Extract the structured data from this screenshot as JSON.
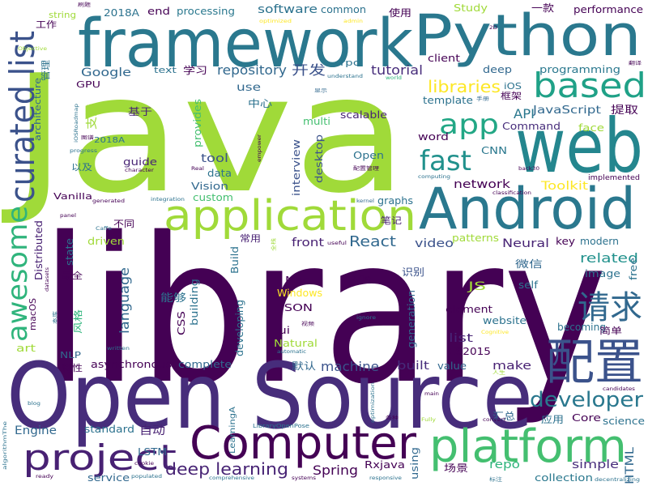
{
  "words": [
    {
      "text": "library",
      "color": "#440154"
    },
    {
      "text": "Java",
      "color": "#a0da39"
    },
    {
      "text": "Open Source",
      "color": "#472d7b"
    },
    {
      "text": "framework",
      "color": "#2a788e"
    },
    {
      "text": "Python",
      "color": "#2a788e"
    },
    {
      "text": "web",
      "color": "#24868e"
    },
    {
      "text": "Android",
      "color": "#2a788e"
    },
    {
      "text": "application",
      "color": "#a0da39"
    },
    {
      "text": "Computer",
      "color": "#440154"
    },
    {
      "text": "platform",
      "color": "#44bf70"
    },
    {
      "text": "配置",
      "color": "#3b528b"
    },
    {
      "text": "project",
      "color": "#482173"
    },
    {
      "text": "based",
      "color": "#1fa187"
    },
    {
      "text": "curated list",
      "color": "#3b528b"
    },
    {
      "text": "awesome",
      "color": "#2fb47c"
    },
    {
      "text": "app",
      "color": "#22a785"
    },
    {
      "text": "fast",
      "color": "#21918c"
    },
    {
      "text": "developer",
      "color": "#2a788e"
    },
    {
      "text": "请求",
      "color": "#31688e"
    },
    {
      "text": "deep learning",
      "color": "#482475"
    },
    {
      "text": "React",
      "color": "#31688e"
    },
    {
      "text": "Spring",
      "color": "#440154"
    },
    {
      "text": "libraries",
      "color": "#fde725"
    },
    {
      "text": "repository",
      "color": "#31688e"
    },
    {
      "text": "tutorial",
      "color": "#472d7b"
    },
    {
      "text": "machine",
      "color": "#3b528b"
    },
    {
      "text": "software",
      "color": "#2c728e"
    },
    {
      "text": "开发",
      "color": "#3b528b"
    },
    {
      "text": "Google",
      "color": "#31688e"
    },
    {
      "text": "language",
      "color": "#31688e"
    },
    {
      "text": "related",
      "color": "#21918c"
    },
    {
      "text": "Neural",
      "color": "#482475"
    },
    {
      "text": "video",
      "color": "#3b528b"
    },
    {
      "text": "built",
      "color": "#472d7b"
    },
    {
      "text": "make",
      "color": "#482173"
    },
    {
      "text": "list",
      "color": "#482475"
    },
    {
      "text": "repo",
      "color": "#2fb47c"
    },
    {
      "text": "simple",
      "color": "#472d7b"
    },
    {
      "text": "Rxjava",
      "color": "#440154"
    },
    {
      "text": "HTML",
      "color": "#31688e"
    },
    {
      "text": "JS",
      "color": "#a0da39"
    },
    {
      "text": "Engine",
      "color": "#31688e"
    },
    {
      "text": "collection",
      "color": "#2a788e"
    },
    {
      "text": "using",
      "color": "#31688e"
    },
    {
      "text": "LSTM",
      "color": "#31688e"
    },
    {
      "text": "service",
      "color": "#31688e"
    },
    {
      "text": "自动",
      "color": "#482173"
    },
    {
      "text": "front",
      "color": "#482173"
    },
    {
      "text": "network",
      "color": "#440154"
    },
    {
      "text": "Toolkit",
      "color": "#fde725"
    },
    {
      "text": "Vision",
      "color": "#31688e"
    },
    {
      "text": "Open",
      "color": "#2c728e"
    },
    {
      "text": "desktop",
      "color": "#3b528b"
    },
    {
      "text": "interview",
      "color": "#3b528b"
    },
    {
      "text": "Command",
      "color": "#472d7b"
    },
    {
      "text": "JavaScript",
      "color": "#31688e"
    },
    {
      "text": "API",
      "color": "#2a788e"
    },
    {
      "text": "提取",
      "color": "#440154"
    },
    {
      "text": "face",
      "color": "#a0da39"
    },
    {
      "text": "word",
      "color": "#440154"
    },
    {
      "text": "CNN",
      "color": "#2a788e"
    },
    {
      "text": "guide",
      "color": "#482475"
    },
    {
      "text": "tool",
      "color": "#3b528b"
    },
    {
      "text": "provides",
      "color": "#44bf70"
    },
    {
      "text": "scalable",
      "color": "#482475"
    },
    {
      "text": "multi",
      "color": "#44bf70"
    },
    {
      "text": "use",
      "color": "#31688e"
    },
    {
      "text": "支持",
      "color": "#a0da39"
    },
    {
      "text": "基于",
      "color": "#482475"
    },
    {
      "text": "中心",
      "color": "#2c728e"
    },
    {
      "text": "GPU",
      "color": "#440154"
    },
    {
      "text": "text",
      "color": "#2c728e"
    },
    {
      "text": "学习",
      "color": "#440154"
    },
    {
      "text": "rpc",
      "color": "#2c728e"
    },
    {
      "text": "client",
      "color": "#440154"
    },
    {
      "text": "deep",
      "color": "#31688e"
    },
    {
      "text": "programming",
      "color": "#2a788e"
    },
    {
      "text": "iOS",
      "color": "#2c728e"
    },
    {
      "text": "框架",
      "color": "#440154"
    },
    {
      "text": "template",
      "color": "#2c728e"
    },
    {
      "text": "performance",
      "color": "#440154"
    },
    {
      "text": "Study",
      "color": "#a0da39"
    },
    {
      "text": "processing",
      "color": "#2a788e"
    },
    {
      "text": "common",
      "color": "#2c728e"
    },
    {
      "text": "使用",
      "color": "#440154"
    },
    {
      "text": "一款",
      "color": "#440154"
    },
    {
      "text": "2018A",
      "color": "#2c728e"
    },
    {
      "text": "end",
      "color": "#440154"
    },
    {
      "text": "string",
      "color": "#a0da39"
    },
    {
      "text": "工作",
      "color": "#440154"
    },
    {
      "text": "architecture",
      "color": "#31688e"
    },
    {
      "text": "管理",
      "color": "#2c728e"
    },
    {
      "text": "以及",
      "color": "#2c728e"
    },
    {
      "text": "Vanilla",
      "color": "#440154"
    },
    {
      "text": "custom",
      "color": "#44bf70"
    },
    {
      "text": "data",
      "color": "#2c728e"
    },
    {
      "text": "graphs",
      "color": "#2c728e"
    },
    {
      "text": "笔记",
      "color": "#482173"
    },
    {
      "text": "常用",
      "color": "#482173"
    },
    {
      "text": "不同",
      "color": "#440154"
    },
    {
      "text": "driven",
      "color": "#a0da39"
    },
    {
      "text": "state",
      "color": "#2c728e"
    },
    {
      "text": "Distributed",
      "color": "#482173"
    },
    {
      "text": "最全",
      "color": "#440154"
    },
    {
      "text": "Build",
      "color": "#2c728e"
    },
    {
      "text": "building",
      "color": "#2c728e"
    },
    {
      "text": "能够",
      "color": "#2c728e"
    },
    {
      "text": "Mac",
      "color": "#440154"
    },
    {
      "text": "Windows",
      "color": "#fde725"
    },
    {
      "text": "JSON",
      "color": "#440154"
    },
    {
      "text": "ui",
      "color": "#440154"
    },
    {
      "text": "Natural",
      "color": "#a0da39"
    },
    {
      "text": "CSS",
      "color": "#440154"
    },
    {
      "text": "developing",
      "color": "#2c728e"
    },
    {
      "text": "asynchronous",
      "color": "#440154"
    },
    {
      "text": "complete",
      "color": "#31688e"
    },
    {
      "text": "特性",
      "color": "#440154"
    },
    {
      "text": "NLP",
      "color": "#31688e"
    },
    {
      "text": "art",
      "color": "#a0da39"
    },
    {
      "text": "macOS",
      "color": "#440154"
    },
    {
      "text": "风格",
      "color": "#2fb47c"
    },
    {
      "text": "ES2015",
      "color": "#440154"
    },
    {
      "text": "默认",
      "color": "#31688e"
    },
    {
      "text": "value",
      "color": "#31688e"
    },
    {
      "text": "element",
      "color": "#440154"
    },
    {
      "text": "website",
      "color": "#2c728e"
    },
    {
      "text": "generation",
      "color": "#31688e"
    },
    {
      "text": "becoming",
      "color": "#2c728e"
    },
    {
      "text": "简单",
      "color": "#440154"
    },
    {
      "text": "image",
      "color": "#2c728e"
    },
    {
      "text": "self",
      "color": "#2c728e"
    },
    {
      "text": "微信",
      "color": "#31688e"
    },
    {
      "text": "识别",
      "color": "#3b528b"
    },
    {
      "text": "patterns",
      "color": "#a0da39"
    },
    {
      "text": "key",
      "color": "#440154"
    },
    {
      "text": "modern",
      "color": "#2c728e"
    },
    {
      "text": "free",
      "color": "#2c728e"
    },
    {
      "text": "implemented",
      "color": "#440154"
    },
    {
      "text": "汇总",
      "color": "#31688e"
    },
    {
      "text": "应用",
      "color": "#2c728e"
    },
    {
      "text": "Core",
      "color": "#440154"
    },
    {
      "text": "science",
      "color": "#2c728e"
    },
    {
      "text": "场景",
      "color": "#440154"
    },
    {
      "text": "standard",
      "color": "#2c728e"
    },
    {
      "text": "LearningA",
      "color": "#2c728e"
    },
    {
      "text": "2018A",
      "color": "#2c728e"
    },
    {
      "text": "optimized",
      "color": "#fde725"
    },
    {
      "text": "admin",
      "color": "#fde725"
    },
    {
      "text": "Objective",
      "color": "#a0da39"
    },
    {
      "text": "understand",
      "color": "#2c728e"
    },
    {
      "text": "world",
      "color": "#2fb47c"
    },
    {
      "text": "显示",
      "color": "#31688e"
    },
    {
      "text": "手册",
      "color": "#31688e"
    },
    {
      "text": "翻译",
      "color": "#440154"
    },
    {
      "text": "empower",
      "color": "#440154"
    },
    {
      "text": "配置管理",
      "color": "#440154"
    },
    {
      "text": "back30",
      "color": "#440154"
    },
    {
      "text": "computing",
      "color": "#2c728e"
    },
    {
      "text": "classification",
      "color": "#440154"
    },
    {
      "text": "integration",
      "color": "#2c728e"
    },
    {
      "text": "kernel",
      "color": "#31688e"
    },
    {
      "text": "panel",
      "color": "#440154"
    },
    {
      "text": "generated",
      "color": "#440154"
    },
    {
      "text": "Caffe",
      "color": "#2c728e"
    },
    {
      "text": "useful",
      "color": "#440154"
    },
    {
      "text": "入门级",
      "color": "#440154"
    },
    {
      "text": "视频",
      "color": "#440154"
    },
    {
      "text": "ignore",
      "color": "#2c728e"
    },
    {
      "text": "Cognitive",
      "color": "#fde725"
    },
    {
      "text": "人生",
      "color": "#a0da39"
    },
    {
      "text": "candidates",
      "color": "#440154"
    },
    {
      "text": "convert",
      "color": "#440154"
    },
    {
      "text": "Fully",
      "color": "#a0da39"
    },
    {
      "text": "各种",
      "color": "#440154"
    },
    {
      "text": "main",
      "color": "#440154"
    },
    {
      "text": "optimization",
      "color": "#2c728e"
    },
    {
      "text": "blog",
      "color": "#2c728e"
    },
    {
      "text": "datasets",
      "color": "#440154"
    },
    {
      "text": "本库",
      "color": "#2c728e"
    },
    {
      "text": "written",
      "color": "#2c728e"
    },
    {
      "text": "automatic",
      "color": "#2c728e"
    },
    {
      "text": "cookie",
      "color": "#440154"
    },
    {
      "text": "LibraryOpenPose",
      "color": "#2c728e"
    },
    {
      "text": "algorithmThe",
      "color": "#2c728e"
    },
    {
      "text": "ready",
      "color": "#440154"
    },
    {
      "text": "populated",
      "color": "#2c728e"
    },
    {
      "text": "comprehensive",
      "color": "#2c728e"
    },
    {
      "text": "systems",
      "color": "#440154"
    },
    {
      "text": "responsive",
      "color": "#2c728e"
    },
    {
      "text": "标注",
      "color": "#2c728e"
    },
    {
      "text": "decentralizing",
      "color": "#2c728e"
    },
    {
      "text": "progress",
      "color": "#2c728e"
    },
    {
      "text": "character",
      "color": "#440154"
    },
    {
      "text": "图谱",
      "color": "#440154"
    },
    {
      "text": "Real",
      "color": "#440154"
    },
    {
      "text": "全栈",
      "color": "#a0da39"
    },
    {
      "text": "2D",
      "color": "#440154"
    },
    {
      "text": "刷题",
      "color": "#440154"
    },
    {
      "text": "iOSRoadmap",
      "color": "#2c728e"
    }
  ]
}
